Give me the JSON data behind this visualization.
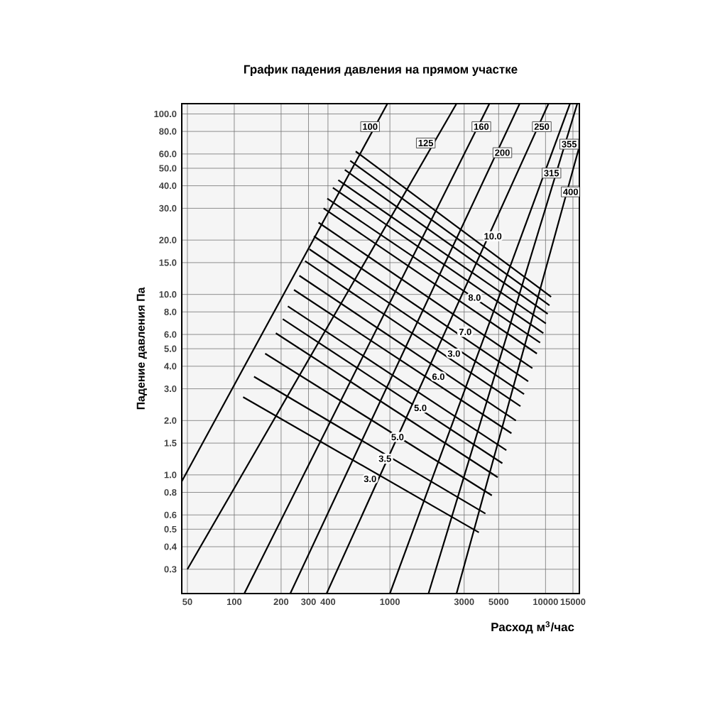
{
  "chart_data": {
    "type": "line",
    "title": "График падения давления на прямом участке",
    "xlabel": "Расход м$^{3}$/час",
    "ylabel": "Падение давления Па",
    "log": "xy",
    "grid": true,
    "xlim": [
      46,
      16500
    ],
    "ylim": [
      0.22,
      114
    ],
    "xticks": [
      50,
      100,
      200,
      300,
      400,
      1000,
      3000,
      5000,
      10000,
      15000
    ],
    "yticks": [
      0.3,
      0.4,
      0.5,
      0.6,
      0.8,
      {
        "value": 1,
        "label": "1.0"
      },
      1.5,
      {
        "value": 2,
        "label": "2.0"
      },
      {
        "value": 3,
        "label": "3.0"
      },
      {
        "value": 4,
        "label": "4.0"
      },
      {
        "value": 5,
        "label": "5.0"
      },
      {
        "value": 6,
        "label": "6.0"
      },
      {
        "value": 8,
        "label": "8.0"
      },
      {
        "value": 10,
        "label": "10.0"
      },
      {
        "value": 15,
        "label": "15.0"
      },
      {
        "value": 20,
        "label": "20.0"
      },
      {
        "value": 30,
        "label": "30.0"
      },
      {
        "value": 40,
        "label": "40.0"
      },
      {
        "value": 50,
        "label": "50.0"
      },
      {
        "value": 60,
        "label": "60.0"
      },
      {
        "value": 80,
        "label": "80.0"
      },
      {
        "value": 100,
        "label": "100.0"
      }
    ],
    "series": [
      {
        "color": "#000000",
        "x": [
          46,
          964
        ],
        "values": [
          0.92,
          114
        ]
      },
      {
        "color": "#000000",
        "x": [
          50,
          2680
        ],
        "values": [
          0.3,
          114
        ]
      },
      {
        "color": "#000000",
        "x": [
          116,
          4360
        ],
        "values": [
          0.22,
          114
        ]
      },
      {
        "color": "#000000",
        "x": [
          229,
          6820
        ],
        "values": [
          0.22,
          114
        ]
      },
      {
        "color": "#000000",
        "x": [
          392,
          10450
        ],
        "values": [
          0.22,
          114
        ]
      },
      {
        "color": "#000000",
        "x": [
          1000,
          14360
        ],
        "values": [
          0.22,
          114
        ]
      },
      {
        "color": "#000000",
        "x": [
          1770,
          16000
        ],
        "values": [
          0.22,
          114
        ]
      },
      {
        "color": "#000000",
        "x": [
          2680,
          16500
        ],
        "values": [
          0.22,
          66
        ]
      },
      {
        "color": "#000000",
        "x": [
          603,
          10860
        ],
        "values": [
          62,
          9.7
        ]
      },
      {
        "color": "#000000",
        "x": [
          556,
          10600
        ],
        "values": [
          55,
          8.7
        ]
      },
      {
        "color": "#000000",
        "x": [
          513,
          10330
        ],
        "values": [
          49,
          7.8
        ]
      },
      {
        "color": "#000000",
        "x": [
          466,
          10050
        ],
        "values": [
          43,
          6.9
        ]
      },
      {
        "color": "#000000",
        "x": [
          430,
          9680
        ],
        "values": [
          39,
          6.1
        ]
      },
      {
        "color": "#000000",
        "x": [
          396,
          9230
        ],
        "values": [
          34,
          5.4
        ]
      },
      {
        "color": "#000000",
        "x": [
          375,
          8800
        ],
        "values": [
          30,
          4.7
        ]
      },
      {
        "color": "#000000",
        "x": [
          348,
          8230
        ],
        "values": [
          25,
          3.9
        ]
      },
      {
        "color": "#000000",
        "x": [
          325,
          7740
        ],
        "values": [
          21,
          3.3
        ]
      },
      {
        "color": "#000000",
        "x": [
          304,
          7280
        ],
        "values": [
          17.8,
          2.8
        ]
      },
      {
        "color": "#000000",
        "x": [
          285,
          6900
        ],
        "values": [
          15.3,
          2.4
        ]
      },
      {
        "color": "#000000",
        "x": [
          262,
          6450
        ],
        "values": [
          12.7,
          2.0
        ]
      },
      {
        "color": "#000000",
        "x": [
          242,
          6040
        ],
        "values": [
          10.6,
          1.7
        ]
      },
      {
        "color": "#000000",
        "x": [
          221,
          5600
        ],
        "values": [
          8.6,
          1.37
        ]
      },
      {
        "color": "#000000",
        "x": [
          205,
          5280
        ],
        "values": [
          7.3,
          1.16
        ]
      },
      {
        "color": "#000000",
        "x": [
          185,
          4930
        ],
        "values": [
          6.1,
          0.97
        ]
      },
      {
        "color": "#000000",
        "x": [
          158,
          4520
        ],
        "values": [
          4.7,
          0.77
        ]
      },
      {
        "color": "#000000",
        "x": [
          134,
          4110
        ],
        "values": [
          3.5,
          0.61
        ]
      },
      {
        "color": "#000000",
        "x": [
          114,
          3730
        ],
        "values": [
          2.7,
          0.48
        ]
      }
    ],
    "annotations": [
      {
        "text": "100",
        "x": 746,
        "y": 85
      },
      {
        "text": "125",
        "x": 1700,
        "y": 69
      },
      {
        "text": "160",
        "x": 3870,
        "y": 85
      },
      {
        "text": "200",
        "x": 5280,
        "y": 61
      },
      {
        "text": "250",
        "x": 9460,
        "y": 85
      },
      {
        "text": "315",
        "x": 10920,
        "y": 47
      },
      {
        "text": "355",
        "x": 14200,
        "y": 68
      },
      {
        "text": "400",
        "x": 14500,
        "y": 37
      },
      {
        "text": "10.0",
        "x": 4590,
        "y": 21
      },
      {
        "text": "8.0",
        "x": 3500,
        "y": 9.6
      },
      {
        "text": "7.0",
        "x": 3050,
        "y": 6.2
      },
      {
        "text": "3.0",
        "x": 2580,
        "y": 4.7
      },
      {
        "text": "6.0",
        "x": 2050,
        "y": 3.5
      },
      {
        "text": "5.0",
        "x": 1570,
        "y": 2.35
      },
      {
        "text": "5.0",
        "x": 1120,
        "y": 1.62
      },
      {
        "text": "3.5",
        "x": 930,
        "y": 1.23
      },
      {
        "text": "3.0",
        "x": 746,
        "y": 0.95
      }
    ]
  }
}
